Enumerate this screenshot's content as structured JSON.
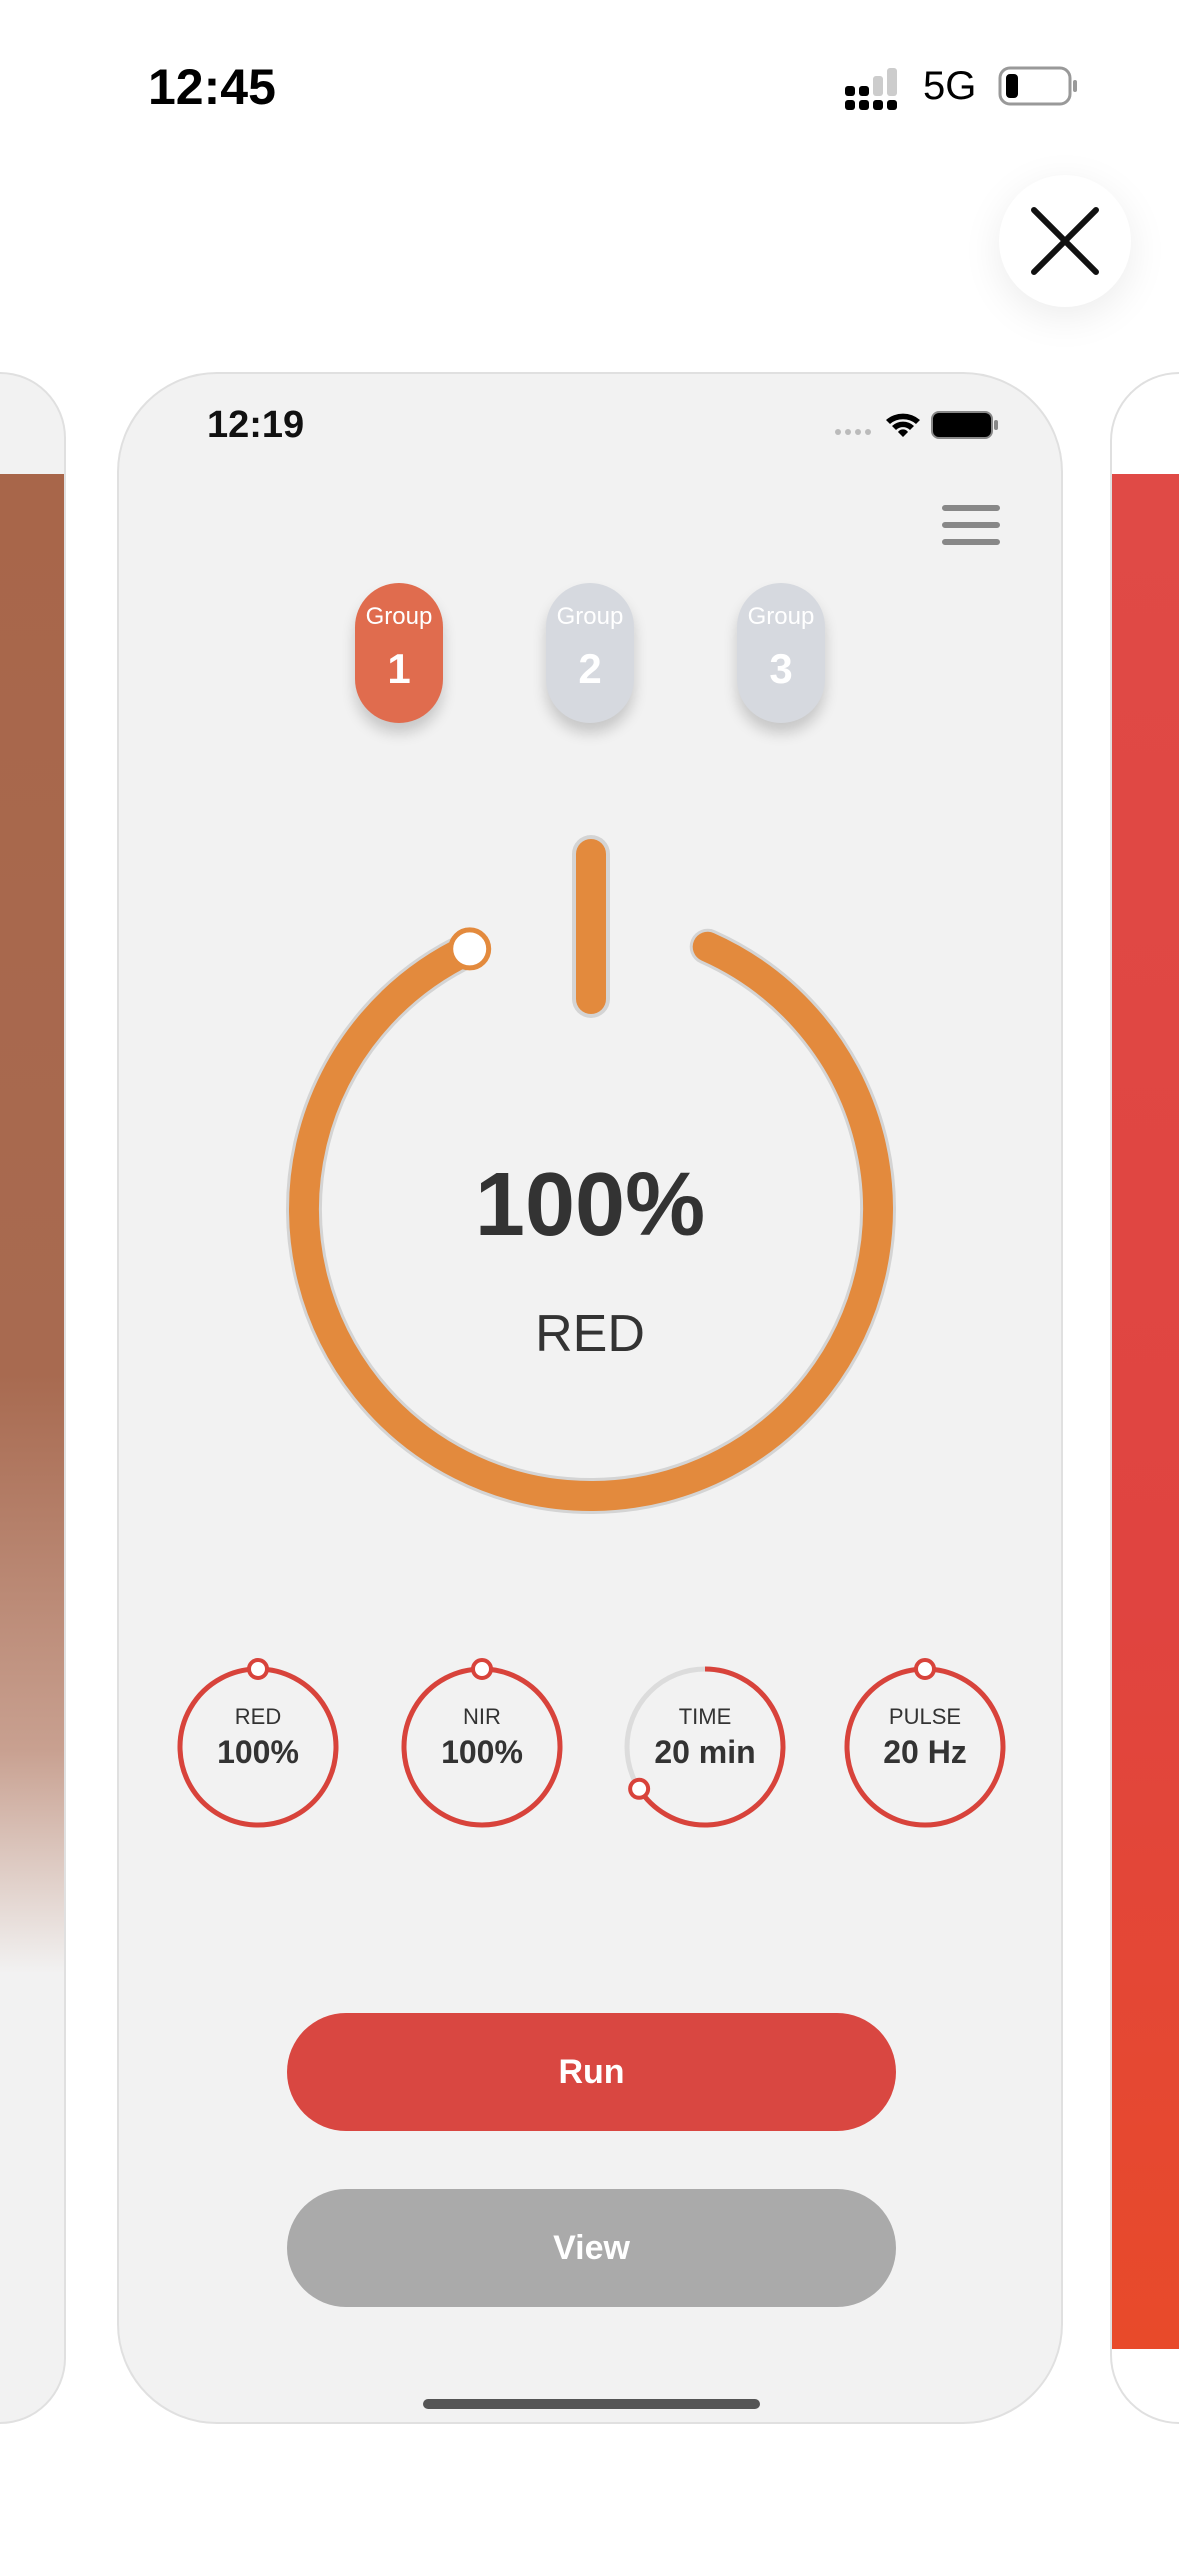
{
  "system_status": {
    "time": "12:45",
    "network": "5G"
  },
  "close_icon": "close-icon",
  "app_preview": {
    "status_time": "12:19",
    "groups": [
      {
        "label": "Group",
        "number": "1",
        "active": true
      },
      {
        "label": "Group",
        "number": "2",
        "active": false
      },
      {
        "label": "Group",
        "number": "3",
        "active": false
      }
    ],
    "dial": {
      "value": "100%",
      "mode": "RED",
      "progress": 1.0,
      "color": "#e38a3d"
    },
    "controls": [
      {
        "label": "RED",
        "value": "100%",
        "progress": 1.0
      },
      {
        "label": "NIR",
        "value": "100%",
        "progress": 1.0
      },
      {
        "label": "TIME",
        "value": "20 min",
        "progress": 0.66
      },
      {
        "label": "PULSE",
        "value": "20 Hz",
        "progress": 1.0
      }
    ],
    "run_label": "Run",
    "view_label": "View",
    "colors": {
      "active_group": "#e06c4e",
      "inactive_group": "#d6d9df",
      "accent": "#d8433b",
      "run": "#d94741",
      "view": "#aaaaaa"
    }
  }
}
